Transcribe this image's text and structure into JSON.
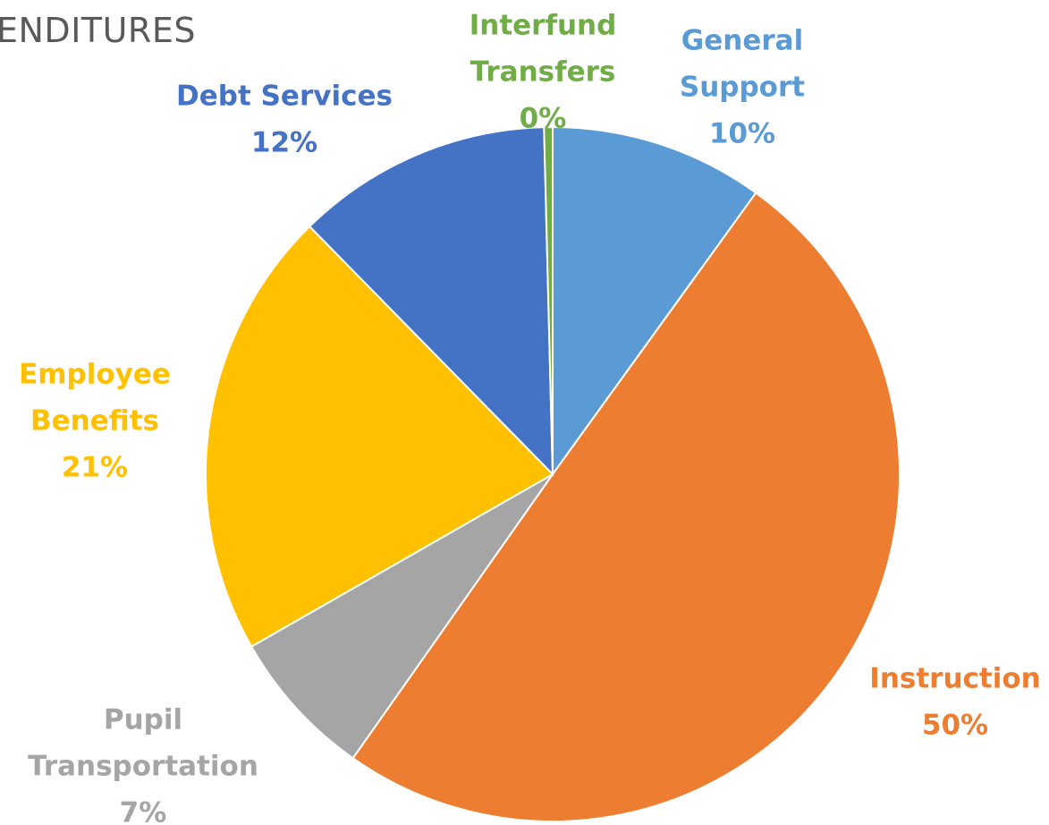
{
  "chart_data": {
    "type": "pie",
    "title": "ENDITURES",
    "slices": [
      {
        "label_lines": [
          "General",
          "Support"
        ],
        "value": 10,
        "value_label": "10%",
        "color": "#5b9bd5"
      },
      {
        "label_lines": [
          "Instruction"
        ],
        "value": 50,
        "value_label": "50%",
        "color": "#ed7d31"
      },
      {
        "label_lines": [
          "Pupil",
          "Transportation"
        ],
        "value": 7,
        "value_label": "7%",
        "color": "#a5a5a5"
      },
      {
        "label_lines": [
          "Employee",
          "Benefits"
        ],
        "value": 21,
        "value_label": "21%",
        "color": "#ffc000"
      },
      {
        "label_lines": [
          "Debt Services"
        ],
        "value": 12,
        "value_label": "12%",
        "color": "#4472c4"
      },
      {
        "label_lines": [
          "Interfund",
          "Transfers"
        ],
        "value": 0.4,
        "value_label": "0%",
        "color": "#70ad47"
      }
    ],
    "start_angle_deg": 0,
    "direction": "clockwise",
    "legend": "none",
    "data_labels": "category name and percentage, outside"
  }
}
